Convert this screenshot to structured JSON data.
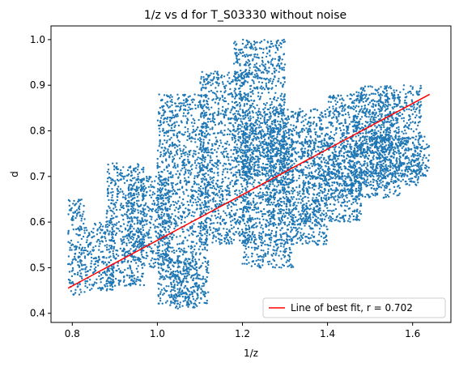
{
  "chart_data": {
    "type": "scatter",
    "title": "1/z vs d for T_S03330 without noise",
    "xlabel": "1/z",
    "ylabel": "d",
    "xlim": [
      0.75,
      1.69
    ],
    "ylim": [
      0.38,
      1.03
    ],
    "xticks": [
      0.8,
      1.0,
      1.2,
      1.4,
      1.6
    ],
    "xtick_labels": [
      "0.8",
      "1.0",
      "1.2",
      "1.4",
      "1.6"
    ],
    "yticks": [
      0.4,
      0.5,
      0.6,
      0.7,
      0.8,
      0.9,
      1.0
    ],
    "ytick_labels": [
      "0.4",
      "0.5",
      "0.6",
      "0.7",
      "0.8",
      "0.9",
      "1.0"
    ],
    "grid": false,
    "legend_position": "lower-right",
    "series": [
      {
        "type": "scatter",
        "color": "#1f77b4",
        "clusters": [
          {
            "x_range": [
              0.79,
              0.83
            ],
            "y_range": [
              0.44,
              0.65
            ]
          },
          {
            "x_range": [
              0.83,
              0.9
            ],
            "y_range": [
              0.45,
              0.6
            ]
          },
          {
            "x_range": [
              0.88,
              0.97
            ],
            "y_range": [
              0.46,
              0.73
            ]
          },
          {
            "x_range": [
              0.93,
              1.03
            ],
            "y_range": [
              0.5,
              0.7
            ]
          },
          {
            "x_range": [
              1.0,
              1.12
            ],
            "y_range": [
              0.42,
              0.88
            ]
          },
          {
            "x_range": [
              1.03,
              1.1
            ],
            "y_range": [
              0.41,
              0.52
            ]
          },
          {
            "x_range": [
              1.1,
              1.22
            ],
            "y_range": [
              0.55,
              0.93
            ]
          },
          {
            "x_range": [
              1.18,
              1.3
            ],
            "y_range": [
              0.7,
              1.0
            ]
          },
          {
            "x_range": [
              1.2,
              1.32
            ],
            "y_range": [
              0.5,
              0.82
            ]
          },
          {
            "x_range": [
              1.26,
              1.4
            ],
            "y_range": [
              0.55,
              0.85
            ]
          },
          {
            "x_range": [
              1.34,
              1.48
            ],
            "y_range": [
              0.6,
              0.78
            ]
          },
          {
            "x_range": [
              1.4,
              1.57
            ],
            "y_range": [
              0.65,
              0.88
            ]
          },
          {
            "x_range": [
              1.46,
              1.62
            ],
            "y_range": [
              0.68,
              0.9
            ]
          },
          {
            "x_range": [
              1.5,
              1.64
            ],
            "y_range": [
              0.7,
              0.79
            ]
          }
        ]
      },
      {
        "name": "Line of best fit, r = 0.702",
        "type": "line",
        "color": "#ff0000",
        "x": [
          0.79,
          1.64
        ],
        "y": [
          0.455,
          0.88
        ]
      }
    ]
  }
}
